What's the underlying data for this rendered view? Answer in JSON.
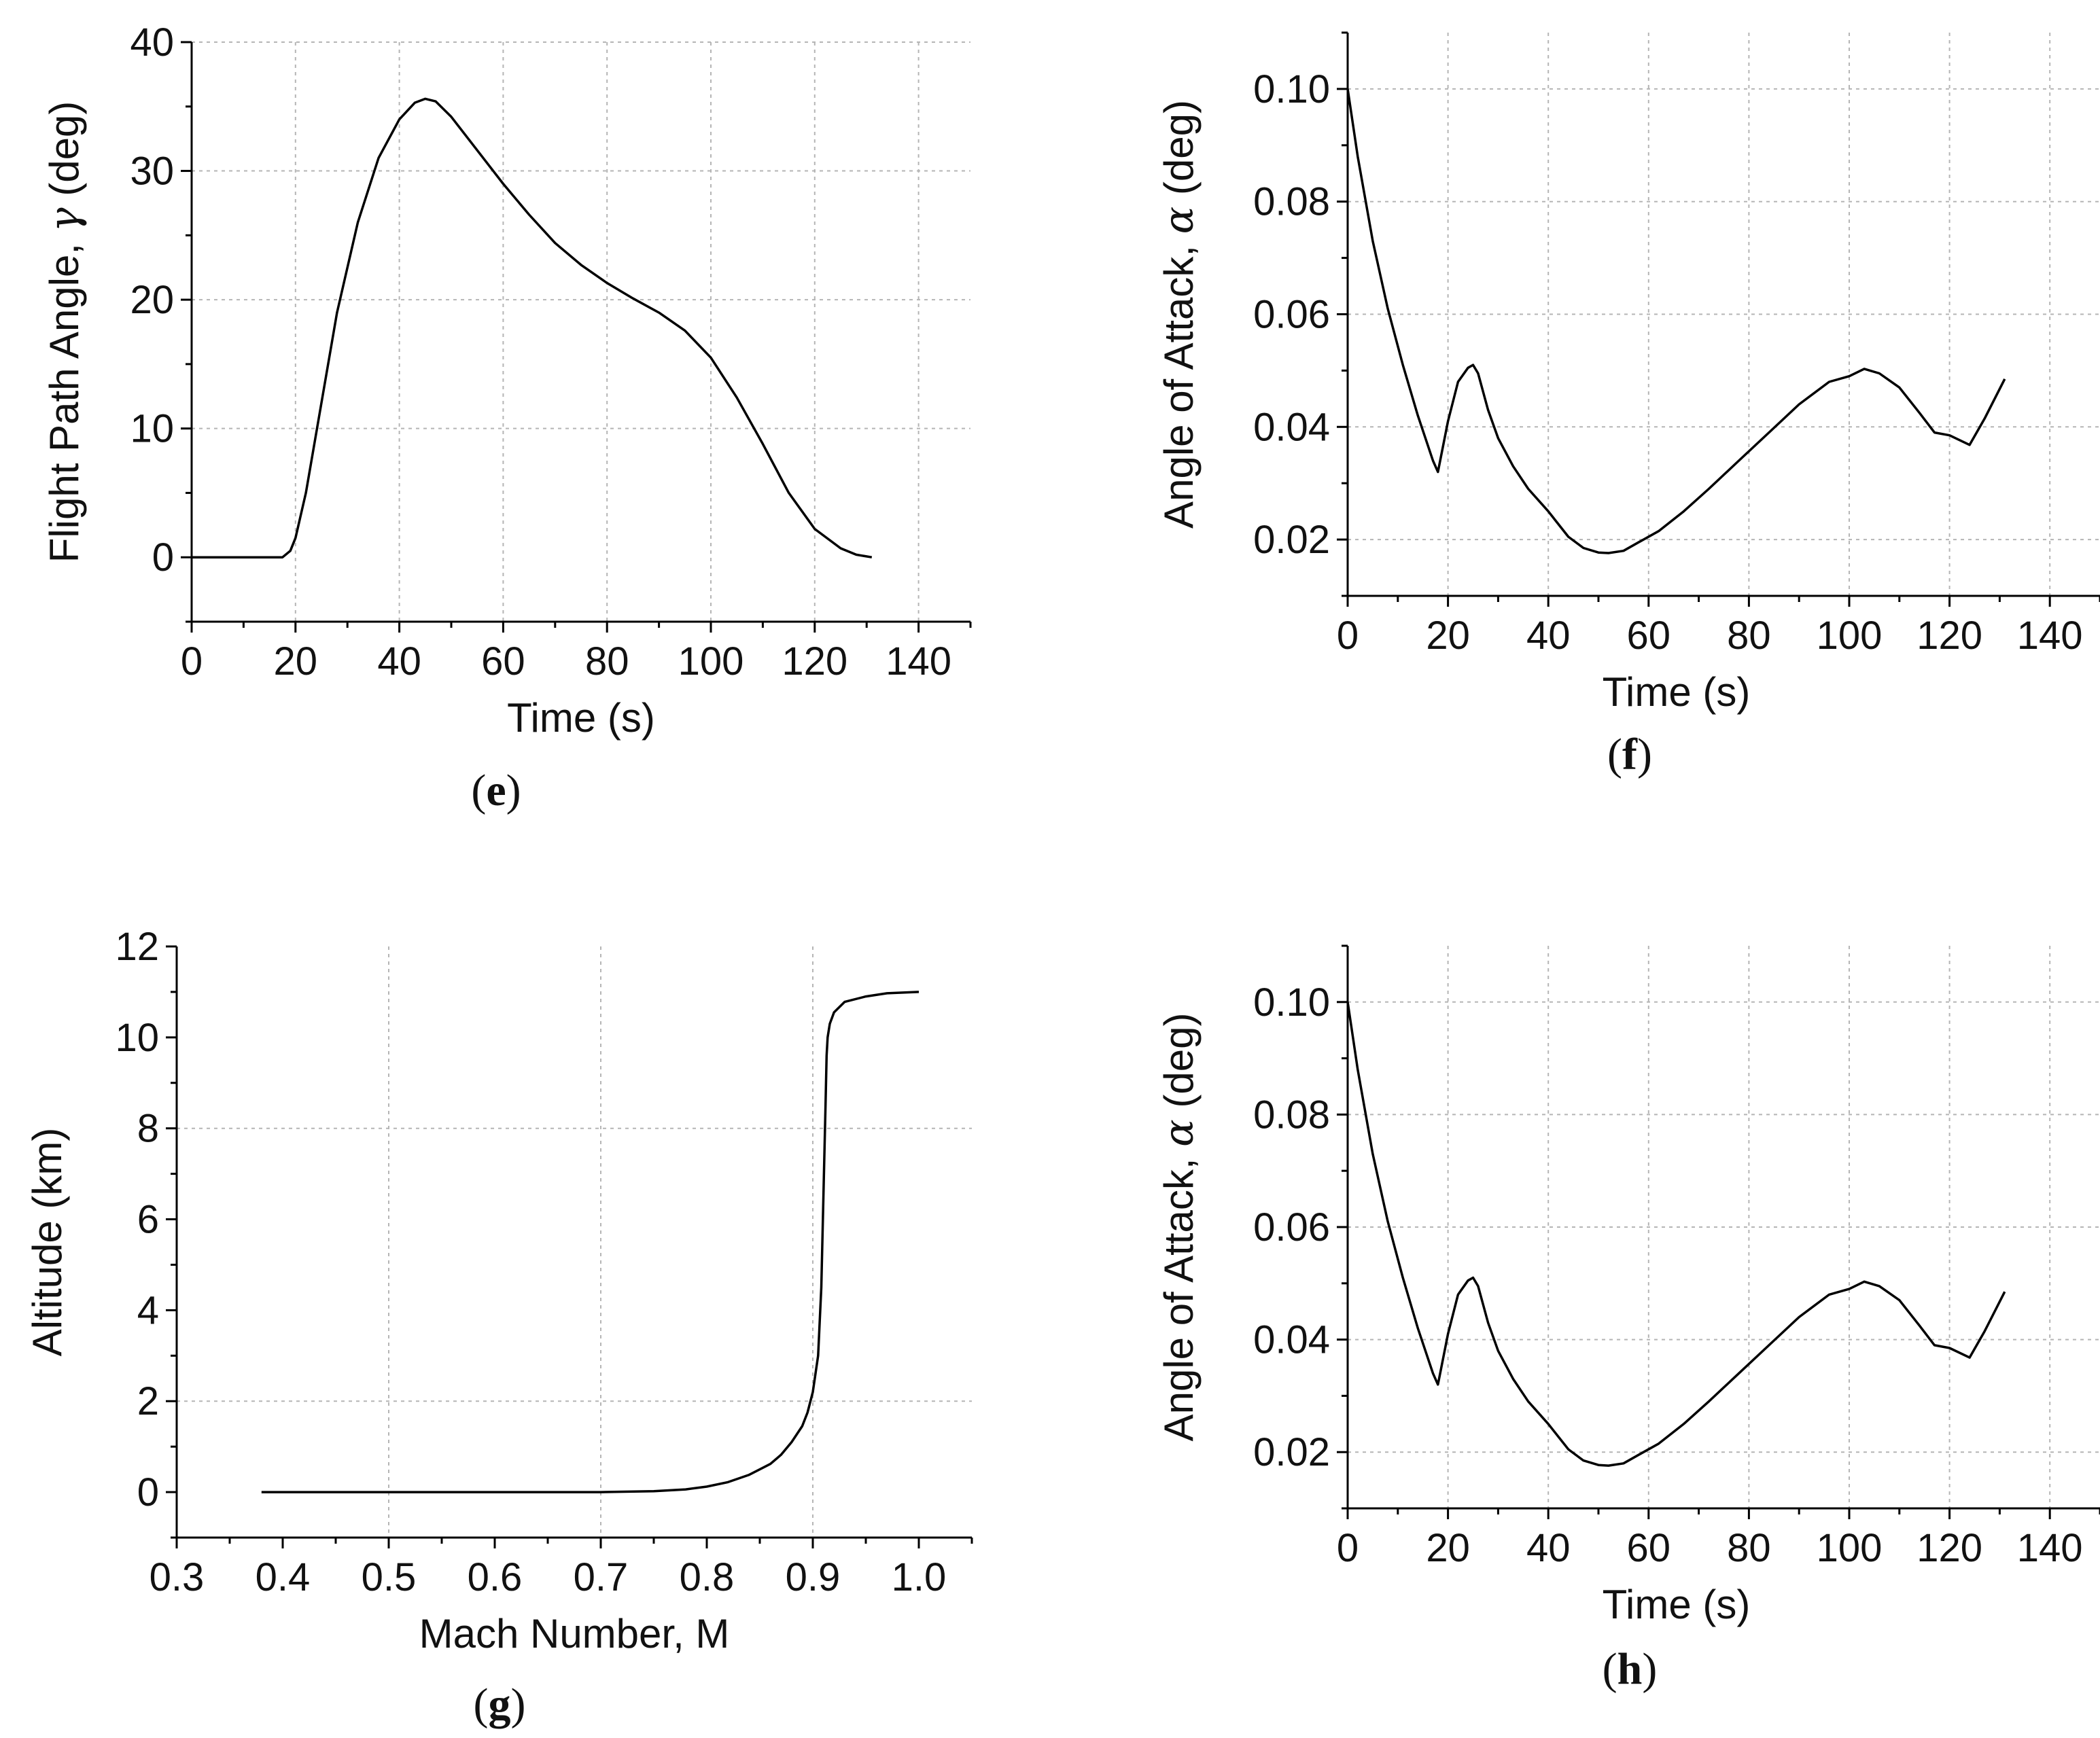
{
  "chart_data": [
    {
      "id": "e",
      "type": "line",
      "caption_label": "e",
      "title": "",
      "xlabel": "Time (s)",
      "ylabel_text": "Flight Path Angle, ",
      "ylabel_symbol": "γ",
      "ylabel_unit": " (deg)",
      "xlim": [
        0,
        150
      ],
      "ylim": [
        -5,
        40
      ],
      "xticks": [
        0,
        20,
        40,
        60,
        80,
        100,
        120,
        140
      ],
      "yticks": [
        0,
        10,
        20,
        30,
        40
      ],
      "xtick_labels": [
        "0",
        "20",
        "40",
        "60",
        "80",
        "100",
        "120",
        "140"
      ],
      "ytick_labels": [
        "0",
        "10",
        "20",
        "30",
        "40"
      ],
      "xgrid": [
        20,
        40,
        60,
        80,
        100,
        120,
        140
      ],
      "ygrid": [
        10,
        20,
        30,
        40
      ],
      "grid": true,
      "series": [
        {
          "name": "gamma",
          "x": [
            0,
            10,
            17.5,
            19,
            20,
            22,
            25,
            28,
            32,
            36,
            40,
            43,
            45,
            47,
            50,
            55,
            60,
            65,
            70,
            75,
            80,
            85,
            90,
            95,
            100,
            105,
            110,
            115,
            120,
            125,
            128,
            131
          ],
          "y": [
            0,
            0,
            0,
            0.5,
            1.5,
            5,
            12,
            19,
            26,
            31,
            34,
            35.3,
            35.6,
            35.4,
            34.2,
            31.6,
            29,
            26.6,
            24.4,
            22.7,
            21.3,
            20.1,
            19,
            17.6,
            15.5,
            12.4,
            8.8,
            5,
            2.2,
            0.7,
            0.2,
            0
          ]
        }
      ]
    },
    {
      "id": "f",
      "type": "line",
      "caption_label": "f",
      "title": "",
      "xlabel": "Time (s)",
      "ylabel_text": "Angle of Attack, ",
      "ylabel_symbol": "α",
      "ylabel_unit": " (deg)",
      "xlim": [
        0,
        150
      ],
      "ylim": [
        0.01,
        0.11
      ],
      "xticks": [
        0,
        20,
        40,
        60,
        80,
        100,
        120,
        140
      ],
      "yticks": [
        0.02,
        0.04,
        0.06,
        0.08,
        0.1
      ],
      "xtick_labels": [
        "0",
        "20",
        "40",
        "60",
        "80",
        "100",
        "120",
        "140"
      ],
      "ytick_labels": [
        "0.02",
        "0.04",
        "0.06",
        "0.08",
        "0.10"
      ],
      "xgrid": [
        20,
        40,
        60,
        80,
        100,
        120,
        140
      ],
      "ygrid": [
        0.02,
        0.04,
        0.06,
        0.08,
        0.1
      ],
      "grid": true,
      "series": [
        {
          "name": "alpha",
          "x": [
            0,
            2,
            5,
            8,
            11,
            14,
            17,
            18,
            20,
            22,
            24,
            25,
            26,
            28,
            30,
            33,
            36,
            40,
            44,
            47,
            50,
            52,
            55,
            58,
            62,
            67,
            72,
            78,
            84,
            90,
            96,
            100,
            103,
            106,
            110,
            114,
            117,
            120,
            124,
            127,
            131
          ],
          "y": [
            0.1,
            0.088,
            0.073,
            0.061,
            0.051,
            0.042,
            0.034,
            0.032,
            0.041,
            0.048,
            0.0505,
            0.051,
            0.0495,
            0.043,
            0.038,
            0.033,
            0.029,
            0.025,
            0.0205,
            0.0185,
            0.0177,
            0.0176,
            0.018,
            0.0195,
            0.0215,
            0.025,
            0.029,
            0.034,
            0.039,
            0.044,
            0.048,
            0.049,
            0.0503,
            0.0495,
            0.047,
            0.0425,
            0.039,
            0.0385,
            0.0368,
            0.0415,
            0.0485
          ]
        }
      ]
    },
    {
      "id": "g",
      "type": "line",
      "caption_label": "g",
      "title": "",
      "xlabel": "Mach Number, M",
      "ylabel_text": "Altitude (km)",
      "ylabel_symbol": "",
      "ylabel_unit": "",
      "xlim": [
        0.3,
        1.05
      ],
      "ylim": [
        -1,
        12
      ],
      "xticks": [
        0.3,
        0.4,
        0.5,
        0.6,
        0.7,
        0.8,
        0.9,
        1.0
      ],
      "yticks": [
        0,
        2,
        4,
        6,
        8,
        10,
        12
      ],
      "xtick_labels": [
        "0.3",
        "0.4",
        "0.5",
        "0.6",
        "0.7",
        "0.8",
        "0.9",
        "1.0"
      ],
      "ytick_labels": [
        "0",
        "2",
        "4",
        "6",
        "8",
        "10",
        "12"
      ],
      "xgrid": [
        0.5,
        0.7,
        0.9
      ],
      "ygrid": [
        2,
        8
      ],
      "grid": true,
      "series": [
        {
          "name": "altitude",
          "x": [
            0.38,
            0.5,
            0.6,
            0.7,
            0.75,
            0.78,
            0.8,
            0.82,
            0.84,
            0.86,
            0.87,
            0.88,
            0.89,
            0.895,
            0.9,
            0.905,
            0.908,
            0.91,
            0.912,
            0.913,
            0.914,
            0.916,
            0.92,
            0.93,
            0.95,
            0.97,
            1.0
          ],
          "y": [
            0,
            0,
            0,
            0,
            0.02,
            0.06,
            0.12,
            0.22,
            0.38,
            0.62,
            0.82,
            1.1,
            1.45,
            1.75,
            2.2,
            3.0,
            4.5,
            6.5,
            8.5,
            9.6,
            10.0,
            10.3,
            10.55,
            10.78,
            10.9,
            10.97,
            11.0
          ]
        }
      ]
    },
    {
      "id": "h",
      "type": "line",
      "caption_label": "h",
      "title": "",
      "xlabel": "Time (s)",
      "ylabel_text": "Angle of Attack, ",
      "ylabel_symbol": "α",
      "ylabel_unit": " (deg)",
      "xlim": [
        0,
        150
      ],
      "ylim": [
        0.01,
        0.11
      ],
      "xticks": [
        0,
        20,
        40,
        60,
        80,
        100,
        120,
        140
      ],
      "yticks": [
        0.02,
        0.04,
        0.06,
        0.08,
        0.1
      ],
      "xtick_labels": [
        "0",
        "20",
        "40",
        "60",
        "80",
        "100",
        "120",
        "140"
      ],
      "ytick_labels": [
        "0.02",
        "0.04",
        "0.06",
        "0.08",
        "0.10"
      ],
      "xgrid": [
        20,
        40,
        60,
        80,
        100,
        120,
        140
      ],
      "ygrid": [
        0.02,
        0.04,
        0.06,
        0.08,
        0.1
      ],
      "grid": true,
      "series": [
        {
          "name": "alpha",
          "x": [
            0,
            2,
            5,
            8,
            11,
            14,
            17,
            18,
            20,
            22,
            24,
            25,
            26,
            28,
            30,
            33,
            36,
            40,
            44,
            47,
            50,
            52,
            55,
            58,
            62,
            67,
            72,
            78,
            84,
            90,
            96,
            100,
            103,
            106,
            110,
            114,
            117,
            120,
            124,
            127,
            131
          ],
          "y": [
            0.1,
            0.088,
            0.073,
            0.061,
            0.051,
            0.042,
            0.034,
            0.032,
            0.041,
            0.048,
            0.0505,
            0.051,
            0.0495,
            0.043,
            0.038,
            0.033,
            0.029,
            0.025,
            0.0205,
            0.0185,
            0.0177,
            0.0176,
            0.018,
            0.0195,
            0.0215,
            0.025,
            0.029,
            0.034,
            0.039,
            0.044,
            0.048,
            0.049,
            0.0503,
            0.0495,
            0.047,
            0.0425,
            0.039,
            0.0385,
            0.0368,
            0.0415,
            0.0485
          ]
        }
      ]
    }
  ]
}
